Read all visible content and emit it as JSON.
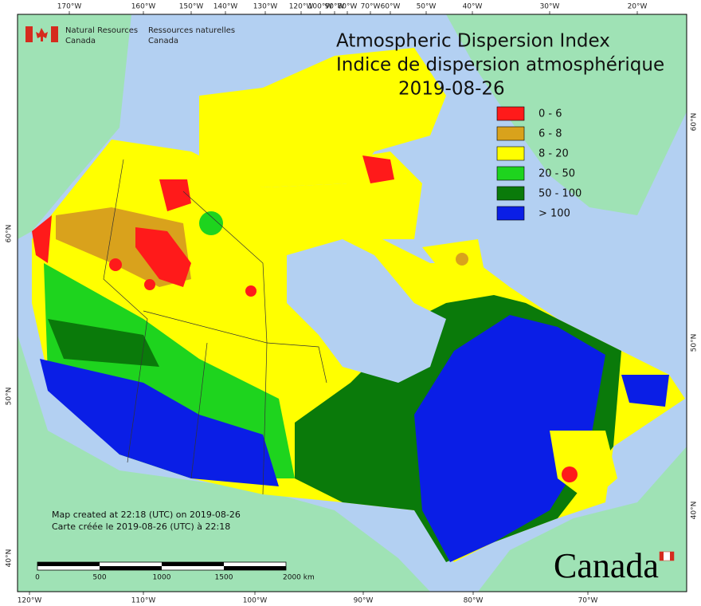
{
  "header": {
    "agency_en_1": "Natural Resources",
    "agency_en_2": "Canada",
    "agency_fr_1": "Ressources naturelles",
    "agency_fr_2": "Canada"
  },
  "title": {
    "line_en": "Atmospheric Dispersion Index",
    "line_fr": "Indice de dispersion atmosphérique",
    "date": "2019-08-26"
  },
  "legend": [
    {
      "label": "0 - 6",
      "color": "#ff1a1a"
    },
    {
      "label": "6 - 8",
      "color": "#d9a21c"
    },
    {
      "label": "8 - 20",
      "color": "#ffff00"
    },
    {
      "label": "20 - 50",
      "color": "#1ed41e"
    },
    {
      "label": "50 - 100",
      "color": "#0a7a0a"
    },
    {
      "label": "> 100",
      "color": "#0a1ee6"
    }
  ],
  "axes": {
    "top": [
      "170°W",
      "160°W",
      "150°W",
      "140°W",
      "130°W",
      "120°W",
      "100°W",
      "90°W",
      "80°W",
      "70°W",
      "60°W",
      "50°W",
      "40°W",
      "30°W",
      "20°W"
    ],
    "bottom": [
      "120°W",
      "110°W",
      "100°W",
      "90°W",
      "80°W",
      "70°W"
    ],
    "left": [
      "60°N",
      "50°N",
      "40°N"
    ],
    "right": [
      "60°N",
      "50°N",
      "40°N"
    ]
  },
  "note": {
    "line_en": "Map created at 22:18 (UTC) on 2019-08-26",
    "line_fr": "Carte créée le 2019-08-26 (UTC) à 22:18"
  },
  "scale": [
    "0",
    "500",
    "1000",
    "1500",
    "2000 km"
  ],
  "wordmark": "Canada"
}
